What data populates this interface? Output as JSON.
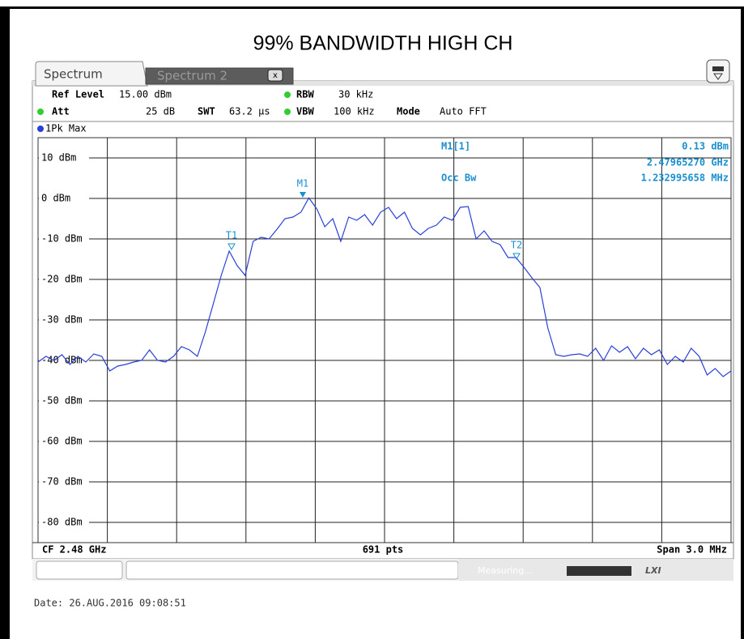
{
  "screen": {
    "tabs": [
      "Spectrum",
      "Spectrum 2"
    ],
    "settings": {
      "ref_level_label": "Ref Level",
      "ref_level": "15.00 dBm",
      "att_label": "Att",
      "att": "25 dB",
      "swt_label": "SWT",
      "swt": "63.2 µs",
      "rbw_label": "RBW",
      "rbw": "30 kHz",
      "vbw_label": "VBW",
      "vbw": "100 kHz",
      "mode_label": "Mode",
      "mode": "Auto FFT"
    },
    "trace_label": "1Pk Max",
    "readout": {
      "marker": "M1[1]",
      "level": "0.13 dBm",
      "freq": "2.47965270 GHz",
      "occ_label": "Occ Bw",
      "occ": "1.232995658 MHz"
    },
    "markers": [
      "M1",
      "T1",
      "T2"
    ],
    "footer": {
      "cf": "CF 2.48 GHz",
      "pts": "691 pts",
      "span": "Span 3.0 MHz"
    },
    "status": "Measuring...",
    "date": "Date: 26.AUG.2016  09:08:51"
  },
  "chart_data": {
    "type": "line",
    "title": "99% BANDWIDTH HIGH CH",
    "color": "#2a3fd8",
    "grid": true,
    "ylim": [
      -85,
      15
    ],
    "yticks": [
      {
        "value": 10,
        "label": "10 dBm"
      },
      {
        "value": 0,
        "label": "0 dBm"
      },
      {
        "value": -10,
        "label": "-10 dBm"
      },
      {
        "value": -20,
        "label": "-20 dBm"
      },
      {
        "value": -30,
        "label": "-30 dBm"
      },
      {
        "value": -40,
        "label": "-40 dBm"
      },
      {
        "value": -50,
        "label": "-50 dBm"
      },
      {
        "value": -60,
        "label": "-60 dBm"
      },
      {
        "value": -70,
        "label": "-70 dBm"
      },
      {
        "value": -80,
        "label": "-80 dBm"
      }
    ],
    "values": [
      -40.4,
      -39,
      -40,
      -38.6,
      -41,
      -39,
      -40.4,
      -38.4,
      -39,
      -42.6,
      -41.4,
      -41,
      -40.4,
      -40,
      -37.4,
      -40,
      -40.4,
      -39,
      -36.6,
      -37.4,
      -39,
      -33,
      -26,
      -19,
      -13,
      -16.6,
      -19,
      -10.6,
      -9.6,
      -10,
      -7.6,
      -5,
      -4.6,
      -3.4,
      0.13,
      -2.6,
      -7,
      -5,
      -10.6,
      -4.6,
      -5.4,
      -4,
      -6.6,
      -3.4,
      -2.2,
      -5,
      -3.4,
      -7.4,
      -9,
      -7.4,
      -6.6,
      -4.6,
      -5.4,
      -2.2,
      -2,
      -10,
      -8,
      -10.6,
      -11.4,
      -14.6,
      -14.6,
      -17,
      -19.6,
      -22,
      -32,
      -38.6,
      -39,
      -38.6,
      -38.4,
      -39,
      -37,
      -40,
      -36.4,
      -38,
      -36.6,
      -39.6,
      -37,
      -38.6,
      -37.4,
      -41,
      -39,
      -40.4,
      -37,
      -39,
      -43.6,
      -42,
      -44,
      -42.6
    ]
  }
}
